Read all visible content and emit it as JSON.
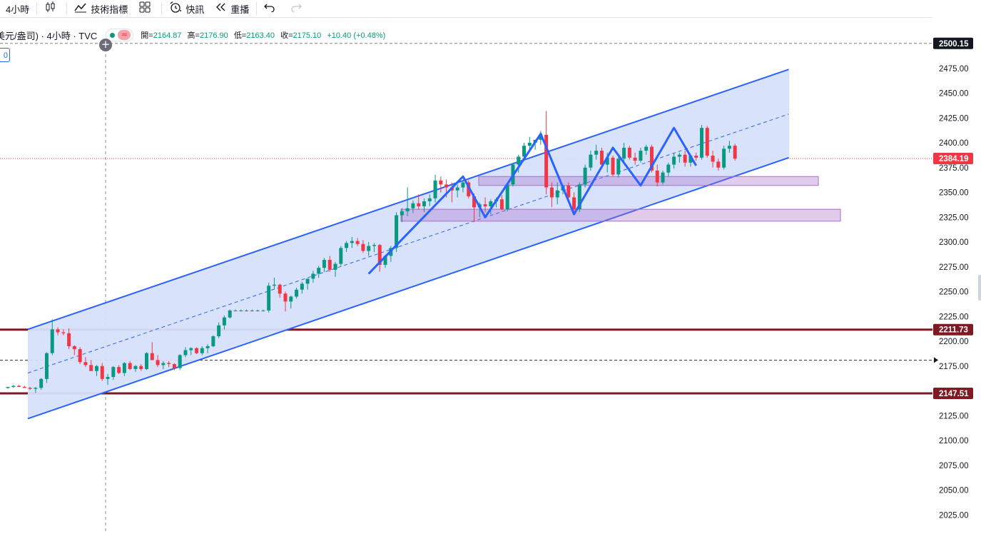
{
  "toolbar": {
    "interval": "4小時",
    "indicators": "技術指標",
    "quick_trade": "快訊",
    "replay": "重播"
  },
  "legend": {
    "symbol": "美元/盎司) · 4小時 · TVC",
    "open_label": "開=",
    "open": "2164.87",
    "high_label": "高=",
    "high": "2176.90",
    "low_label": "低=",
    "low": "2163.40",
    "close_label": "收=",
    "close": "2175.10",
    "change": "+10.40 (+0.48%)"
  },
  "left_badge": "0",
  "colors": {
    "up": "#089981",
    "down": "#f23645",
    "channel": "#2962ff",
    "channel_fill": "#d6e0fb",
    "zone": "#a86ec9",
    "support": "#801922"
  },
  "price_axis": {
    "ticks": [
      "2475.00",
      "2450.00",
      "2425.00",
      "2400.00",
      "2375.00",
      "2350.00",
      "2325.00",
      "2300.00",
      "2275.00",
      "2250.00",
      "2225.00",
      "2200.00",
      "2175.00",
      "2150.00",
      "2125.00",
      "2100.00",
      "2075.00",
      "2050.00",
      "2025.00"
    ],
    "labels": [
      {
        "price": 2500.15,
        "text": "2500.15",
        "color": "#131722"
      },
      {
        "price": 2384.19,
        "text": "2384.19",
        "color": "#f23645"
      },
      {
        "price": 2211.73,
        "text": "2211.73",
        "color": "#801922"
      },
      {
        "price": 2147.51,
        "text": "2147.51",
        "color": "#801922"
      }
    ]
  },
  "chart_data": {
    "type": "candlestick",
    "y_range": [
      2020,
      2505
    ],
    "horizontal_lines": [
      2500.15,
      2384.19,
      2211.73,
      2181,
      2147.51
    ],
    "channel": {
      "upper": [
        {
          "bar": 0,
          "price": 2212
        },
        {
          "bar": 133,
          "price": 2474
        }
      ],
      "mid": [
        {
          "bar": 0,
          "price": 2168
        },
        {
          "bar": 133,
          "price": 2429
        }
      ],
      "lower": [
        {
          "bar": 0,
          "price": 2122
        },
        {
          "bar": 133,
          "price": 2385
        }
      ]
    },
    "zones": [
      {
        "from_bar": 78,
        "to_bar": 144,
        "top": 2366,
        "bottom": 2357
      },
      {
        "from_bar": 65,
        "to_bar": 148,
        "top": 2333,
        "bottom": 2321
      }
    ],
    "pattern": [
      {
        "bar": 65,
        "price": 2268
      },
      {
        "bar": 82,
        "price": 2366
      },
      {
        "bar": 86,
        "price": 2325
      },
      {
        "bar": 96,
        "price": 2409
      },
      {
        "bar": 102,
        "price": 2328
      },
      {
        "bar": 109,
        "price": 2395
      },
      {
        "bar": 114,
        "price": 2357
      },
      {
        "bar": 120,
        "price": 2415
      },
      {
        "bar": 124,
        "price": 2377
      }
    ],
    "candles": [
      [
        2153,
        2154,
        2152,
        2154
      ],
      [
        2154,
        2156,
        2153,
        2155
      ],
      [
        2155,
        2156,
        2154,
        2154
      ],
      [
        2154,
        2155,
        2153,
        2153
      ],
      [
        2153,
        2154,
        2151,
        2152
      ],
      [
        2152,
        2154,
        2148,
        2153
      ],
      [
        2153,
        2163,
        2151,
        2162
      ],
      [
        2162,
        2189,
        2158,
        2188
      ],
      [
        2188,
        2222,
        2186,
        2212
      ],
      [
        2212,
        2214,
        2206,
        2209
      ],
      [
        2209,
        2212,
        2206,
        2208
      ],
      [
        2208,
        2213,
        2192,
        2195
      ],
      [
        2195,
        2196,
        2186,
        2192
      ],
      [
        2192,
        2194,
        2177,
        2179
      ],
      [
        2179,
        2184,
        2174,
        2176
      ],
      [
        2176,
        2181,
        2170,
        2170
      ],
      [
        2170,
        2176,
        2165,
        2175
      ],
      [
        2175,
        2178,
        2160,
        2162
      ],
      [
        2162,
        2167,
        2156,
        2164
      ],
      [
        2164,
        2175,
        2161,
        2174
      ],
      [
        2174,
        2176,
        2167,
        2168
      ],
      [
        2168,
        2179,
        2165,
        2178
      ],
      [
        2178,
        2180,
        2171,
        2172
      ],
      [
        2172,
        2176,
        2169,
        2175
      ],
      [
        2175,
        2177,
        2170,
        2172
      ],
      [
        2172,
        2189,
        2171,
        2188
      ],
      [
        2188,
        2199,
        2183,
        2181
      ],
      [
        2181,
        2186,
        2174,
        2176
      ],
      [
        2176,
        2180,
        2172,
        2178
      ],
      [
        2178,
        2180,
        2174,
        2177
      ],
      [
        2177,
        2178,
        2171,
        2173
      ],
      [
        2173,
        2187,
        2171,
        2186
      ],
      [
        2186,
        2194,
        2184,
        2191
      ],
      [
        2191,
        2194,
        2186,
        2193
      ],
      [
        2193,
        2194,
        2187,
        2188
      ],
      [
        2188,
        2195,
        2186,
        2193
      ],
      [
        2193,
        2197,
        2188,
        2195
      ],
      [
        2195,
        2206,
        2194,
        2205
      ],
      [
        2205,
        2219,
        2203,
        2216
      ],
      [
        2216,
        2226,
        2212,
        2224
      ],
      [
        2224,
        2232,
        2223,
        2231
      ],
      [
        2231,
        2232,
        2230,
        2231
      ],
      [
        2231,
        2232,
        2230,
        2231
      ],
      [
        2231,
        2232,
        2230,
        2231
      ],
      [
        2231,
        2232,
        2230,
        2231
      ],
      [
        2231,
        2232,
        2230,
        2231
      ],
      [
        2231,
        2232,
        2230,
        2231
      ],
      [
        2231,
        2259,
        2229,
        2256
      ],
      [
        2256,
        2264,
        2252,
        2257
      ],
      [
        2257,
        2258,
        2244,
        2248
      ],
      [
        2248,
        2250,
        2230,
        2240
      ],
      [
        2240,
        2246,
        2233,
        2245
      ],
      [
        2245,
        2254,
        2243,
        2252
      ],
      [
        2252,
        2260,
        2248,
        2258
      ],
      [
        2258,
        2262,
        2252,
        2263
      ],
      [
        2263,
        2271,
        2259,
        2268
      ],
      [
        2268,
        2276,
        2264,
        2274
      ],
      [
        2274,
        2284,
        2270,
        2282
      ],
      [
        2282,
        2286,
        2270,
        2272
      ],
      [
        2272,
        2280,
        2265,
        2278
      ],
      [
        2278,
        2296,
        2276,
        2294
      ],
      [
        2294,
        2301,
        2290,
        2299
      ],
      [
        2299,
        2305,
        2294,
        2301
      ],
      [
        2301,
        2304,
        2296,
        2298
      ],
      [
        2298,
        2302,
        2289,
        2291
      ],
      [
        2291,
        2300,
        2286,
        2296
      ],
      [
        2296,
        2299,
        2290,
        2297
      ],
      [
        2297,
        2298,
        2270,
        2277
      ],
      [
        2277,
        2287,
        2274,
        2286
      ],
      [
        2286,
        2296,
        2280,
        2294
      ],
      [
        2294,
        2330,
        2290,
        2327
      ],
      [
        2327,
        2334,
        2320,
        2331
      ],
      [
        2331,
        2355,
        2326,
        2334
      ],
      [
        2334,
        2342,
        2329,
        2339
      ],
      [
        2339,
        2348,
        2333,
        2336
      ],
      [
        2336,
        2344,
        2330,
        2341
      ],
      [
        2341,
        2348,
        2336,
        2344
      ],
      [
        2344,
        2368,
        2340,
        2362
      ],
      [
        2362,
        2366,
        2350,
        2358
      ],
      [
        2358,
        2363,
        2345,
        2355
      ],
      [
        2355,
        2360,
        2340,
        2352
      ],
      [
        2352,
        2358,
        2345,
        2355
      ],
      [
        2355,
        2362,
        2350,
        2360
      ],
      [
        2360,
        2362,
        2344,
        2346
      ],
      [
        2346,
        2349,
        2320,
        2335
      ],
      [
        2335,
        2340,
        2325,
        2338
      ],
      [
        2338,
        2345,
        2330,
        2336
      ],
      [
        2336,
        2343,
        2328,
        2341
      ],
      [
        2341,
        2345,
        2335,
        2343
      ],
      [
        2343,
        2347,
        2332,
        2333
      ],
      [
        2333,
        2360,
        2331,
        2358
      ],
      [
        2358,
        2380,
        2356,
        2378
      ],
      [
        2378,
        2388,
        2370,
        2386
      ],
      [
        2386,
        2400,
        2383,
        2397
      ],
      [
        2397,
        2406,
        2392,
        2400
      ],
      [
        2400,
        2403,
        2393,
        2403
      ],
      [
        2403,
        2412,
        2398,
        2408
      ],
      [
        2408,
        2432,
        2348,
        2355
      ],
      [
        2355,
        2360,
        2335,
        2345
      ],
      [
        2345,
        2360,
        2338,
        2352
      ],
      [
        2352,
        2358,
        2348,
        2357
      ],
      [
        2357,
        2360,
        2344,
        2345
      ],
      [
        2345,
        2350,
        2328,
        2333
      ],
      [
        2333,
        2360,
        2330,
        2358
      ],
      [
        2358,
        2378,
        2355,
        2375
      ],
      [
        2375,
        2392,
        2372,
        2388
      ],
      [
        2388,
        2398,
        2383,
        2392
      ],
      [
        2392,
        2395,
        2375,
        2378
      ],
      [
        2378,
        2390,
        2370,
        2385
      ],
      [
        2385,
        2387,
        2366,
        2368
      ],
      [
        2368,
        2386,
        2365,
        2384
      ],
      [
        2384,
        2400,
        2380,
        2395
      ],
      [
        2395,
        2397,
        2383,
        2385
      ],
      [
        2385,
        2390,
        2378,
        2382
      ],
      [
        2382,
        2395,
        2380,
        2392
      ],
      [
        2392,
        2398,
        2388,
        2396
      ],
      [
        2396,
        2398,
        2370,
        2372
      ],
      [
        2372,
        2378,
        2356,
        2360
      ],
      [
        2360,
        2372,
        2358,
        2370
      ],
      [
        2370,
        2380,
        2366,
        2378
      ],
      [
        2378,
        2390,
        2374,
        2386
      ],
      [
        2386,
        2390,
        2380,
        2388
      ],
      [
        2388,
        2392,
        2376,
        2380
      ],
      [
        2380,
        2389,
        2376,
        2387
      ],
      [
        2387,
        2390,
        2382,
        2385
      ],
      [
        2385,
        2418,
        2383,
        2415
      ],
      [
        2415,
        2417,
        2385,
        2387
      ],
      [
        2387,
        2392,
        2375,
        2381
      ],
      [
        2381,
        2384,
        2372,
        2375
      ],
      [
        2375,
        2397,
        2373,
        2394
      ],
      [
        2394,
        2402,
        2390,
        2397
      ],
      [
        2397,
        2399,
        2382,
        2384
      ]
    ]
  }
}
